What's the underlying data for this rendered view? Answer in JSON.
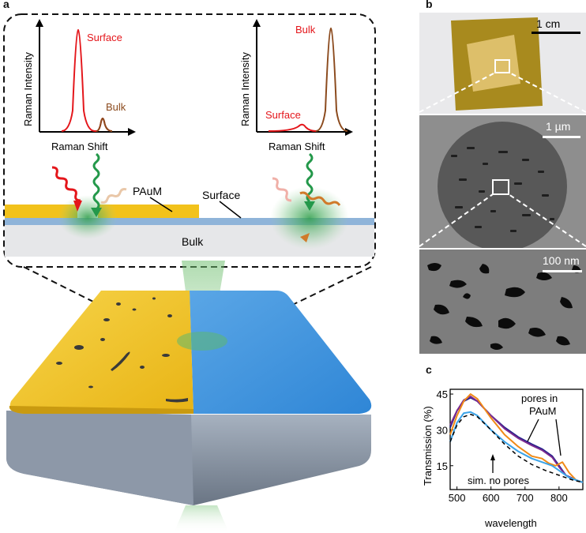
{
  "panels": {
    "a": "a",
    "b": "b",
    "c": "c"
  },
  "schematic": {
    "left_spectrum": {
      "y_axis": "Raman Intensity",
      "x_axis": "Raman Shift",
      "peak_large_label": "Surface",
      "peak_small_label": "Bulk"
    },
    "right_spectrum": {
      "y_axis": "Raman Intensity",
      "x_axis": "Raman Shift",
      "peak_large_label": "Bulk",
      "peak_small_label": "Surface"
    },
    "layer_labels": {
      "pauam": "PAuM",
      "surface": "Surface",
      "bulk": "Bulk"
    },
    "colors": {
      "gold": "#f2c21b",
      "substrate_blue": "#8fb4d9",
      "bulk_gray": "#e6e7e9",
      "laser_green": "#3aa55a",
      "red_label": "#e4161b",
      "brown_peak": "#8b4a1d"
    }
  },
  "micrographs": {
    "top_scale": "1 cm",
    "middle_scale": "1 µm",
    "bottom_scale": "100 nm"
  },
  "chart_data": {
    "type": "line",
    "title": "",
    "xlabel": "wavelength",
    "ylabel": "Transmission (%)",
    "xlim": [
      480,
      870
    ],
    "ylim": [
      5,
      47
    ],
    "xticks": [
      500,
      600,
      700,
      800
    ],
    "yticks": [
      15,
      30,
      45
    ],
    "annotations": [
      "pores in PAuM",
      "sim. no pores"
    ],
    "series": [
      {
        "color": "#1f1f8a",
        "x": [
          480,
          500,
          520,
          540,
          560,
          600,
          640,
          680,
          720,
          750,
          780,
          800,
          820,
          850,
          870
        ],
        "y": [
          31,
          38,
          42,
          43.5,
          42,
          36,
          31,
          27,
          24,
          22,
          19,
          15,
          11,
          9,
          8
        ]
      },
      {
        "color": "#7b2a8f",
        "x": [
          480,
          500,
          520,
          540,
          560,
          600,
          640,
          680,
          720,
          750,
          780,
          800,
          820,
          850,
          870
        ],
        "y": [
          32,
          38,
          42.5,
          44,
          42,
          36,
          30.5,
          26.5,
          23.5,
          21.5,
          18.5,
          14.5,
          11,
          9,
          8
        ]
      },
      {
        "color": "#f08a17",
        "x": [
          480,
          500,
          520,
          540,
          560,
          600,
          640,
          680,
          720,
          750,
          770,
          790,
          810,
          830,
          850,
          870
        ],
        "y": [
          28,
          36,
          42,
          45,
          43,
          35,
          28,
          23,
          19,
          18,
          16,
          15,
          16.5,
          12,
          9,
          8
        ]
      },
      {
        "color": "#3aa3e8",
        "x": [
          480,
          500,
          520,
          540,
          560,
          600,
          640,
          680,
          720,
          750,
          780,
          800,
          830,
          870
        ],
        "y": [
          25,
          33,
          37,
          37.5,
          36,
          30,
          25,
          21,
          18,
          16.5,
          15,
          13,
          10,
          8
        ]
      },
      {
        "color": "#000000",
        "dashed": true,
        "x": [
          480,
          500,
          520,
          540,
          560,
          600,
          640,
          680,
          720,
          760,
          800,
          840,
          870
        ],
        "y": [
          25,
          32,
          35.5,
          36.5,
          35.5,
          30,
          24,
          19,
          15.5,
          13,
          11,
          9,
          8
        ]
      }
    ]
  }
}
